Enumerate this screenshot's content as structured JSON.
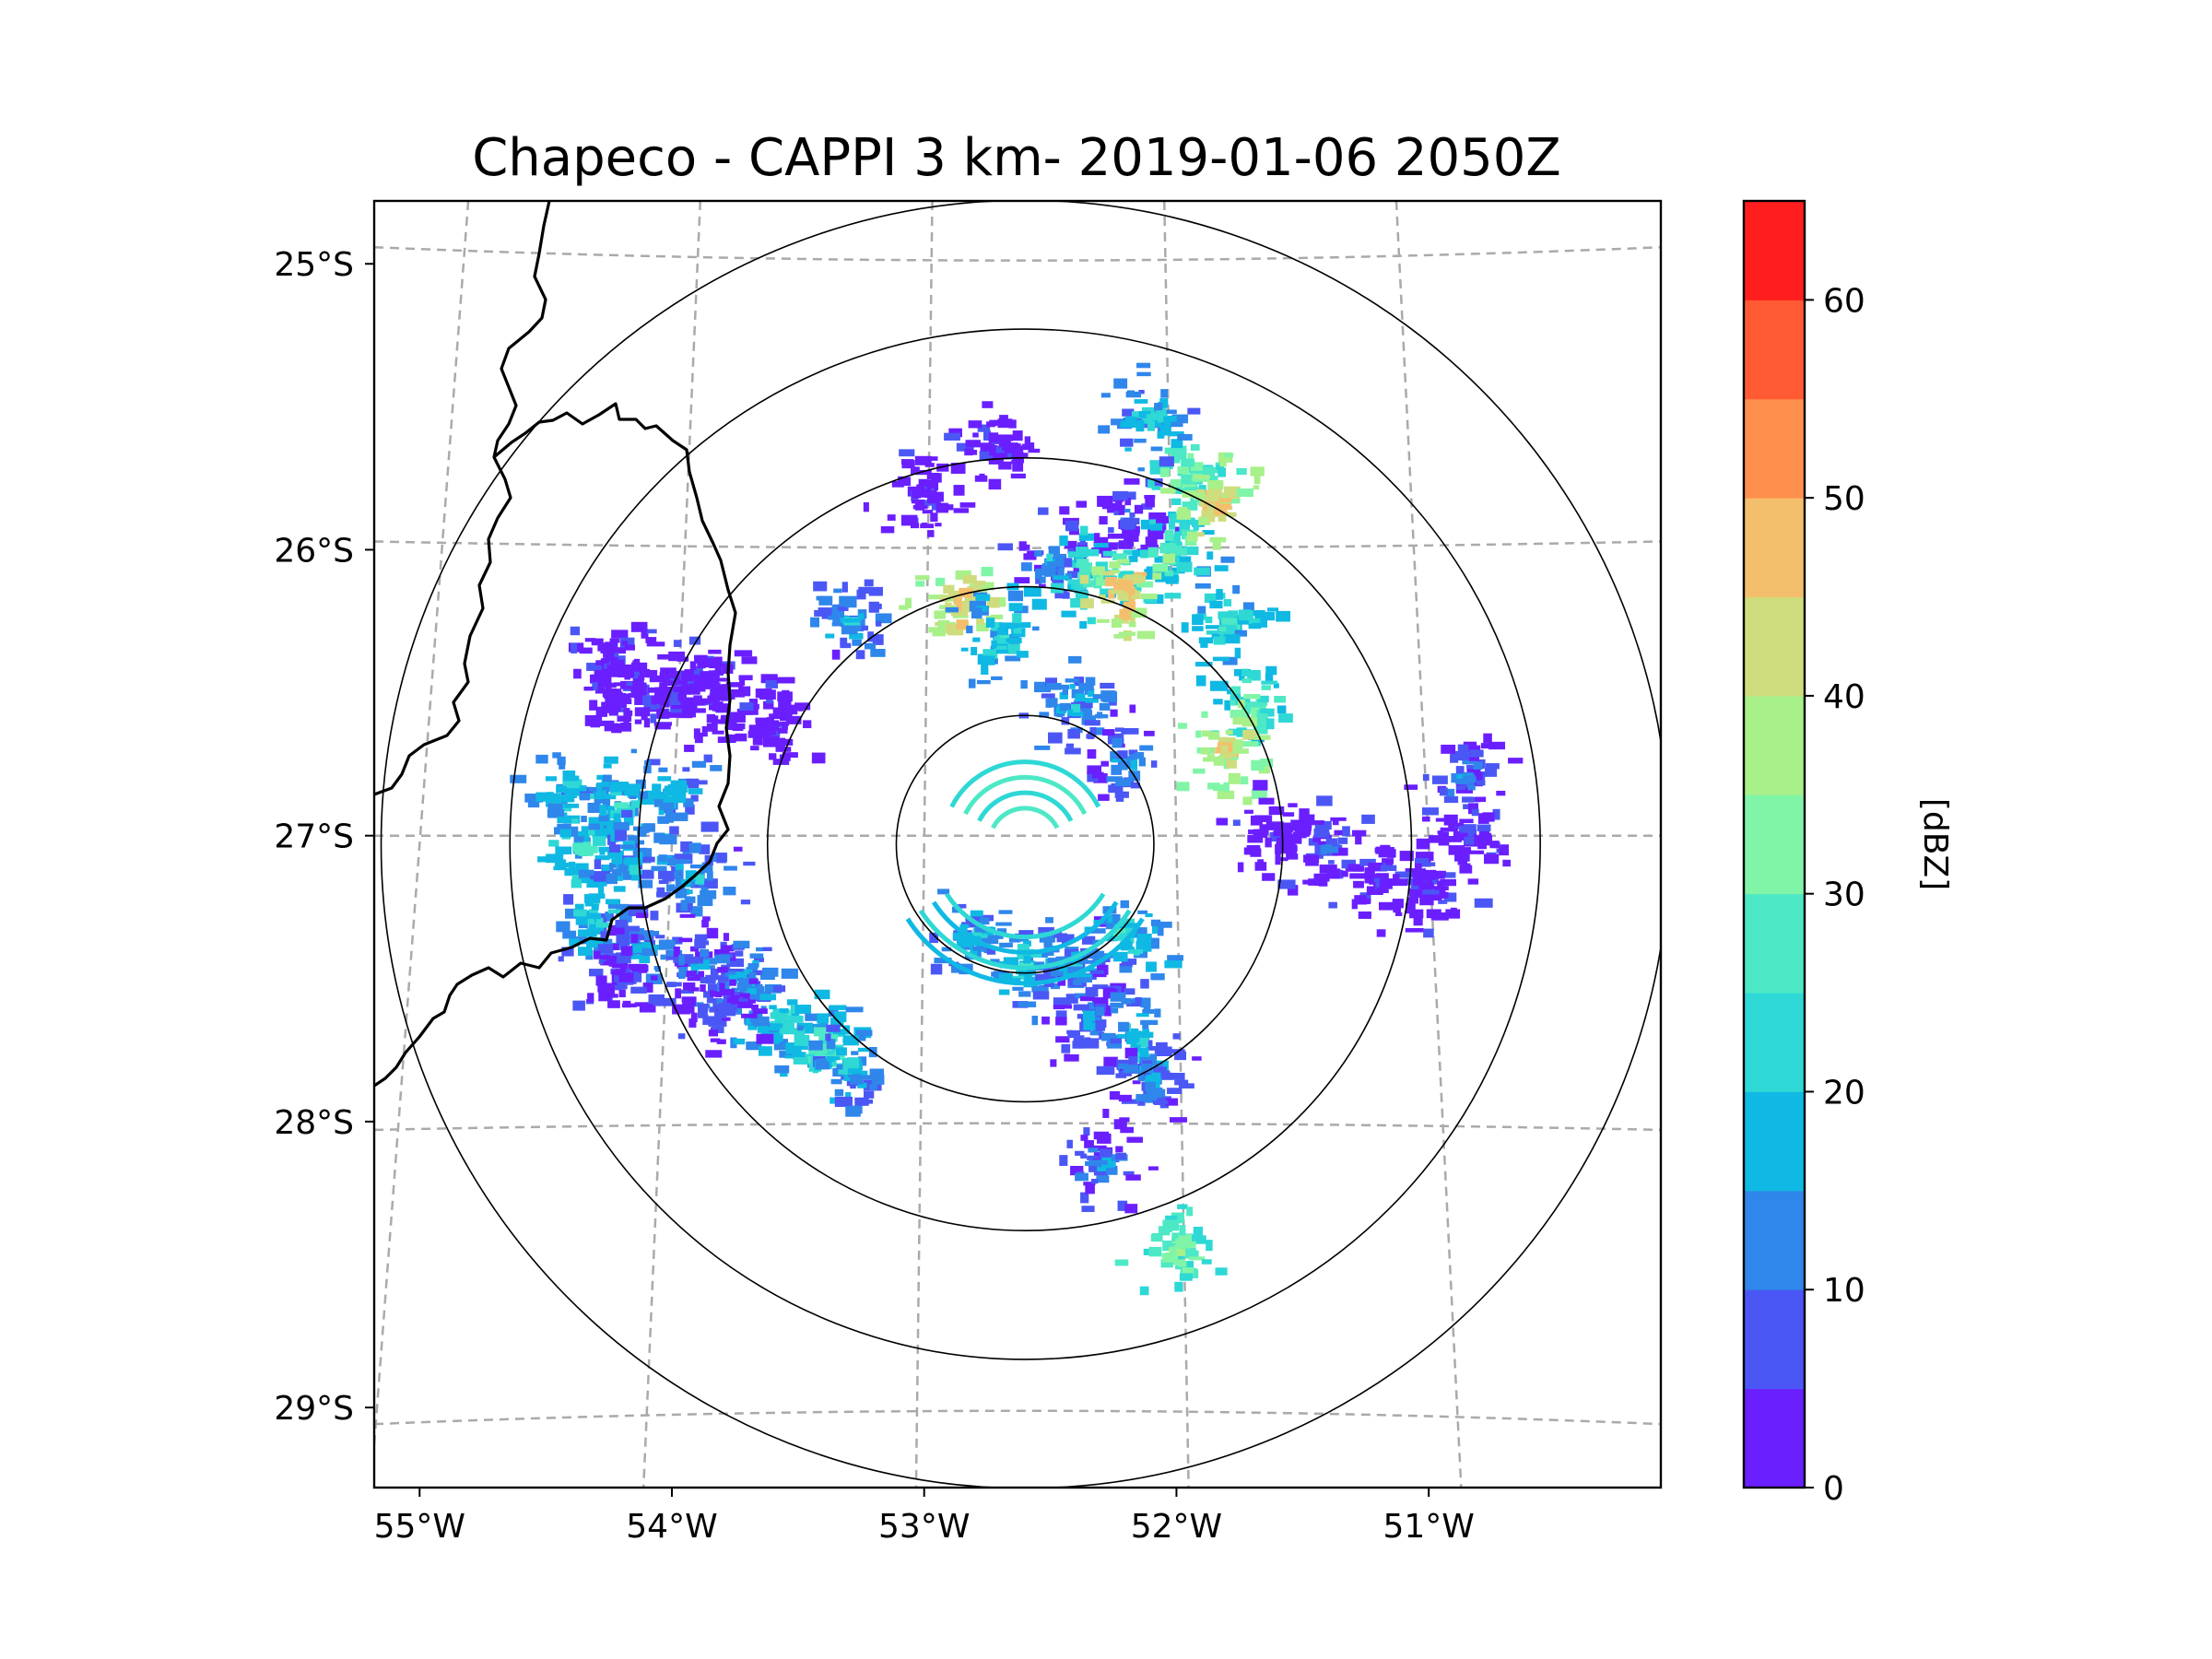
{
  "title": "Chapeco - CAPPI 3 km- 2019-01-06 2050Z",
  "axes": {
    "lat_ticks": [
      {
        "value": -25,
        "label": "25°S"
      },
      {
        "value": -26,
        "label": "26°S"
      },
      {
        "value": -27,
        "label": "27°S"
      },
      {
        "value": -28,
        "label": "28°S"
      },
      {
        "value": -29,
        "label": "29°S"
      }
    ],
    "lon_ticks": [
      {
        "value": -55,
        "label": "55°W"
      },
      {
        "value": -54,
        "label": "54°W"
      },
      {
        "value": -53,
        "label": "53°W"
      },
      {
        "value": -52,
        "label": "52°W"
      },
      {
        "value": -51,
        "label": "51°W"
      }
    ],
    "lon_range": [
      -55.18,
      -50.08
    ],
    "lat_range": [
      -29.28,
      -24.78
    ],
    "gridlines": true
  },
  "radar": {
    "name": "Chapeco",
    "center_lon": -52.6,
    "center_lat": -27.03,
    "range_rings_km": [
      50,
      100,
      150,
      200,
      250
    ]
  },
  "colorbar": {
    "label": "[dBZ]",
    "min": 0,
    "max": 65,
    "tick_values": [
      0,
      10,
      20,
      30,
      40,
      50,
      60
    ],
    "tick_labels": [
      "0",
      "10",
      "20",
      "30",
      "40",
      "50",
      "60"
    ],
    "bins": [
      {
        "from": 0,
        "to": 5,
        "color": "#6a1fff"
      },
      {
        "from": 5,
        "to": 10,
        "color": "#4b57f5"
      },
      {
        "from": 10,
        "to": 15,
        "color": "#2f86eb"
      },
      {
        "from": 15,
        "to": 20,
        "color": "#0fb9e3"
      },
      {
        "from": 20,
        "to": 25,
        "color": "#2ed8d5"
      },
      {
        "from": 25,
        "to": 30,
        "color": "#4de8c5"
      },
      {
        "from": 30,
        "to": 35,
        "color": "#80f5a8"
      },
      {
        "from": 35,
        "to": 40,
        "color": "#a8f08a"
      },
      {
        "from": 40,
        "to": 45,
        "color": "#cfdc7e"
      },
      {
        "from": 45,
        "to": 50,
        "color": "#f4bf6c"
      },
      {
        "from": 50,
        "to": 55,
        "color": "#ff8f4c"
      },
      {
        "from": 55,
        "to": 60,
        "color": "#ff5a33"
      },
      {
        "from": 60,
        "to": 65,
        "color": "#ff1d1d"
      }
    ]
  },
  "echoes": [
    {
      "region": "northwest-strip",
      "cells": [
        {
          "lon": -54.2,
          "lat": -26.52,
          "dbz": 2
        },
        {
          "lon": -54.0,
          "lat": -26.5,
          "dbz": 3
        },
        {
          "lon": -53.8,
          "lat": -26.55,
          "dbz": 2
        },
        {
          "lon": -53.6,
          "lat": -26.62,
          "dbz": 3
        },
        {
          "lon": -54.25,
          "lat": -26.4,
          "dbz": 4
        },
        {
          "lon": -53.9,
          "lat": -26.45,
          "dbz": 6
        }
      ]
    },
    {
      "region": "west-band",
      "cells": [
        {
          "lon": -54.4,
          "lat": -26.85,
          "dbz": 22
        },
        {
          "lon": -54.2,
          "lat": -26.9,
          "dbz": 24
        },
        {
          "lon": -54.0,
          "lat": -26.85,
          "dbz": 20
        },
        {
          "lon": -54.35,
          "lat": -27.05,
          "dbz": 26
        },
        {
          "lon": -54.15,
          "lat": -27.1,
          "dbz": 20
        },
        {
          "lon": -53.9,
          "lat": -27.15,
          "dbz": 18
        },
        {
          "lon": -54.3,
          "lat": -27.3,
          "dbz": 22
        },
        {
          "lon": -54.1,
          "lat": -27.4,
          "dbz": 16
        },
        {
          "lon": -54.2,
          "lat": -27.5,
          "dbz": 8
        }
      ]
    },
    {
      "region": "southwest-arm",
      "cells": [
        {
          "lon": -53.9,
          "lat": -27.45,
          "dbz": 14
        },
        {
          "lon": -53.7,
          "lat": -27.5,
          "dbz": 18
        },
        {
          "lon": -53.55,
          "lat": -27.65,
          "dbz": 24
        },
        {
          "lon": -53.4,
          "lat": -27.75,
          "dbz": 28
        },
        {
          "lon": -53.3,
          "lat": -27.8,
          "dbz": 20
        },
        {
          "lon": -53.8,
          "lat": -27.6,
          "dbz": 10
        }
      ]
    },
    {
      "region": "north-sector",
      "cells": [
        {
          "lon": -52.2,
          "lat": -25.9,
          "dbz": 10
        },
        {
          "lon": -52.5,
          "lat": -26.05,
          "dbz": 14
        },
        {
          "lon": -52.3,
          "lat": -26.1,
          "dbz": 30
        },
        {
          "lon": -52.0,
          "lat": -26.0,
          "dbz": 28
        },
        {
          "lon": -51.95,
          "lat": -25.75,
          "dbz": 34
        },
        {
          "lon": -52.1,
          "lat": -25.55,
          "dbz": 22
        },
        {
          "lon": -51.85,
          "lat": -25.85,
          "dbz": 46
        },
        {
          "lon": -51.8,
          "lat": -26.25,
          "dbz": 26
        },
        {
          "lon": -51.7,
          "lat": -26.55,
          "dbz": 30
        },
        {
          "lon": -51.8,
          "lat": -26.7,
          "dbz": 44
        },
        {
          "lon": -52.2,
          "lat": -26.15,
          "dbz": 48
        },
        {
          "lon": -52.85,
          "lat": -26.2,
          "dbz": 46
        },
        {
          "lon": -52.7,
          "lat": -26.3,
          "dbz": 24
        },
        {
          "lon": -52.4,
          "lat": -26.55,
          "dbz": 20
        },
        {
          "lon": -52.2,
          "lat": -26.75,
          "dbz": 16
        },
        {
          "lon": -53.3,
          "lat": -26.25,
          "dbz": 18
        },
        {
          "lon": -53.0,
          "lat": -25.8,
          "dbz": 4
        },
        {
          "lon": -52.7,
          "lat": -25.65,
          "dbz": 3
        }
      ]
    },
    {
      "region": "south-central",
      "cells": [
        {
          "lon": -52.8,
          "lat": -27.35,
          "dbz": 20
        },
        {
          "lon": -52.6,
          "lat": -27.45,
          "dbz": 22
        },
        {
          "lon": -52.4,
          "lat": -27.45,
          "dbz": 18
        },
        {
          "lon": -52.2,
          "lat": -27.35,
          "dbz": 24
        },
        {
          "lon": -52.35,
          "lat": -27.65,
          "dbz": 14
        },
        {
          "lon": -52.15,
          "lat": -27.7,
          "dbz": 22
        },
        {
          "lon": -52.1,
          "lat": -27.85,
          "dbz": 16
        },
        {
          "lon": -52.3,
          "lat": -28.15,
          "dbz": 14
        },
        {
          "lon": -52.0,
          "lat": -28.45,
          "dbz": 34
        }
      ]
    },
    {
      "region": "east-band",
      "cells": [
        {
          "lon": -51.6,
          "lat": -27.0,
          "dbz": 4
        },
        {
          "lon": -51.4,
          "lat": -27.05,
          "dbz": 10
        },
        {
          "lon": -51.2,
          "lat": -27.15,
          "dbz": 6
        },
        {
          "lon": -51.0,
          "lat": -27.2,
          "dbz": 4
        },
        {
          "lon": -50.85,
          "lat": -27.0,
          "dbz": 8
        },
        {
          "lon": -50.85,
          "lat": -26.8,
          "dbz": 14
        }
      ]
    }
  ]
}
